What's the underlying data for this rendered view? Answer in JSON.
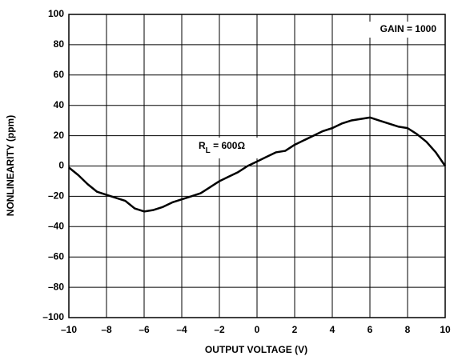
{
  "chart_data": {
    "type": "line",
    "xlabel": "OUTPUT VOLTAGE (V)",
    "ylabel": "NONLINEARITY (ppm)",
    "annotations": [
      {
        "text": "GAIN = 1000"
      },
      {
        "text": "R",
        "subscript": "L",
        "suffix": " = 600Ω"
      }
    ],
    "x": [
      -10,
      -9.5,
      -9,
      -8.5,
      -8,
      -7.5,
      -7,
      -6.5,
      -6,
      -5.5,
      -5,
      -4.5,
      -4,
      -3.5,
      -3,
      -2.5,
      -2,
      -1.5,
      -1,
      -0.5,
      0,
      0.5,
      1,
      1.5,
      2,
      2.5,
      3,
      3.5,
      4,
      4.5,
      5,
      5.5,
      6,
      6.5,
      7,
      7.5,
      8,
      8.5,
      9,
      9.5,
      10
    ],
    "values": [
      -1,
      -6,
      -12,
      -17,
      -19,
      -21,
      -23,
      -28,
      -30,
      -29,
      -27,
      -24,
      -22,
      -20,
      -18,
      -14,
      -10,
      -7,
      -4,
      0,
      3,
      6,
      9,
      10,
      14,
      17,
      20,
      23,
      25,
      28,
      30,
      31,
      32,
      30,
      28,
      26,
      25,
      21,
      16,
      9,
      0
    ],
    "color": "#000000",
    "xlim": [
      -10,
      10
    ],
    "xticks": [
      {
        "value": -10,
        "label": "–10"
      },
      {
        "value": -8,
        "label": "–8"
      },
      {
        "value": -6,
        "label": "–6"
      },
      {
        "value": -4,
        "label": "–4"
      },
      {
        "value": -2,
        "label": "–2"
      },
      0,
      2,
      4,
      6,
      8,
      10
    ],
    "ylim": [
      -100,
      100
    ],
    "yticks": [
      {
        "value": -100,
        "label": "–100"
      },
      {
        "value": -80,
        "label": "–80"
      },
      {
        "value": -60,
        "label": "–60"
      },
      {
        "value": -40,
        "label": "–40"
      },
      {
        "value": -20,
        "label": "–20"
      },
      0,
      20,
      40,
      60,
      80,
      100
    ],
    "grid": true
  }
}
